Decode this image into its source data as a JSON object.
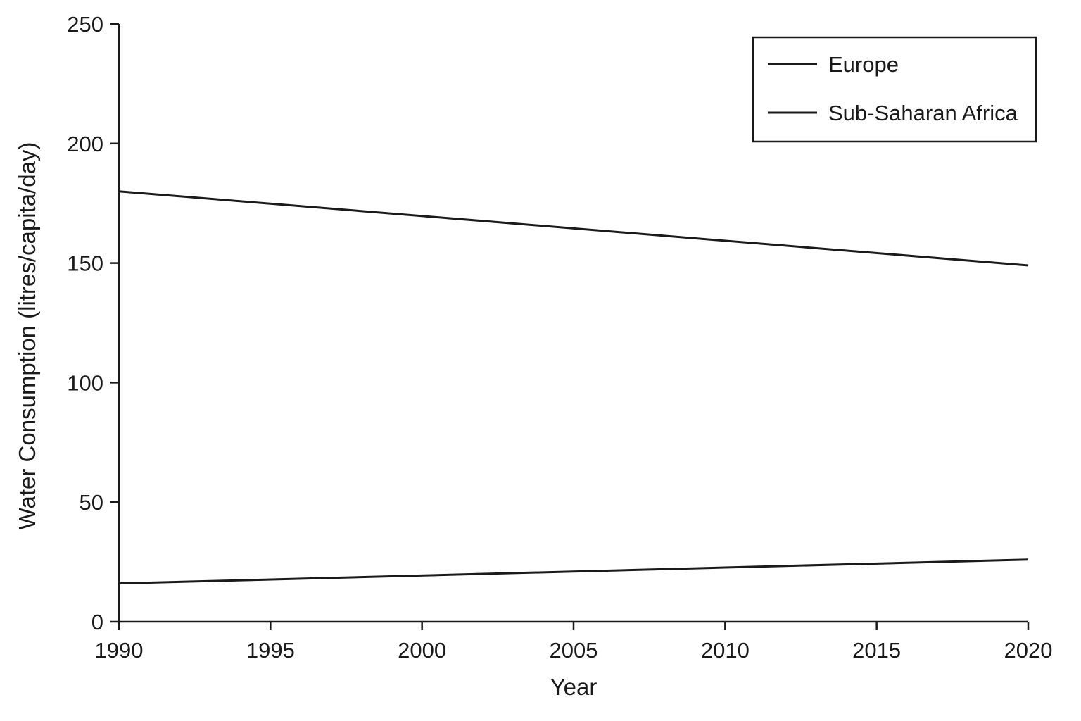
{
  "chart_data": {
    "type": "line",
    "title": "",
    "xlabel": "Year",
    "ylabel": "Water Consumption (litres/capita/day)",
    "x": [
      1990,
      2020
    ],
    "xlim": [
      1990,
      2020
    ],
    "ylim": [
      0,
      250
    ],
    "xticks": [
      "1990",
      "1995",
      "2000",
      "2005",
      "2010",
      "2015",
      "2020"
    ],
    "yticks": [
      "0",
      "50",
      "100",
      "150",
      "200",
      "250"
    ],
    "grid": false,
    "legend_position": "top-right",
    "series": [
      {
        "name": "Europe",
        "values": [
          180,
          149
        ],
        "color": "#1a1a1a"
      },
      {
        "name": "Sub-Saharan Africa",
        "values": [
          16,
          26
        ],
        "color": "#1a1a1a"
      }
    ]
  }
}
